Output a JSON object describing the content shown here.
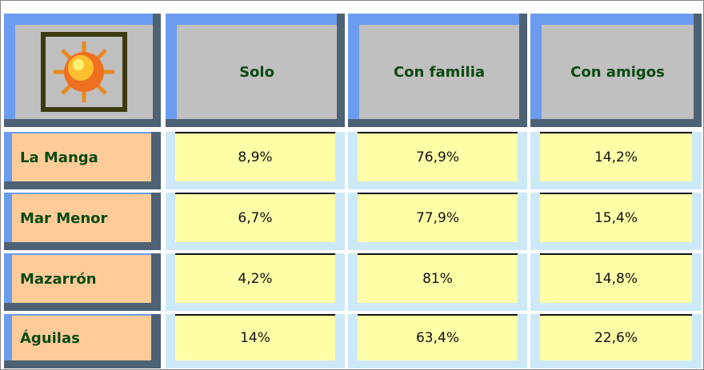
{
  "table": {
    "header": [
      "Solo",
      "Con familia",
      "Con amigos"
    ],
    "rows": [
      [
        "La Manga",
        "8,9%",
        "76,9%",
        "14,2%"
      ],
      [
        "Mar Menor",
        "6,7%",
        "77,9%",
        "15,4%"
      ],
      [
        "Mazarrón",
        "4,2%",
        "81%",
        "14,8%"
      ],
      [
        "Águilas",
        "14%",
        "63,4%",
        "22,6%"
      ]
    ]
  }
}
